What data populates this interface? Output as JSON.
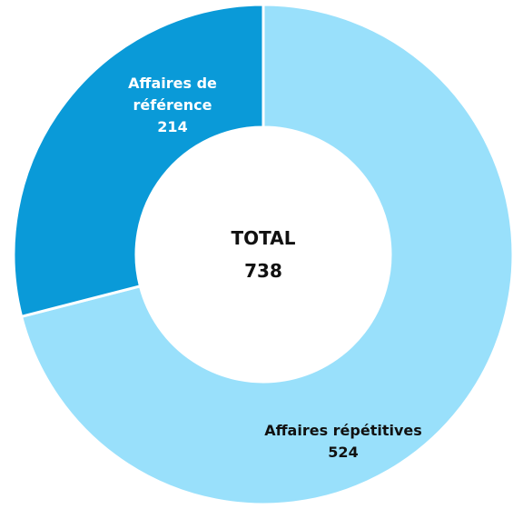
{
  "chart_data": {
    "type": "donut",
    "categories": [
      "Affaires répétitives",
      "Affaires de référence"
    ],
    "values": [
      524,
      214
    ],
    "colors": [
      "#99e0fb",
      "#0a9ad8"
    ],
    "label_colors": [
      "#111111",
      "#ffffff"
    ],
    "center_title": "TOTAL",
    "total": 738
  }
}
